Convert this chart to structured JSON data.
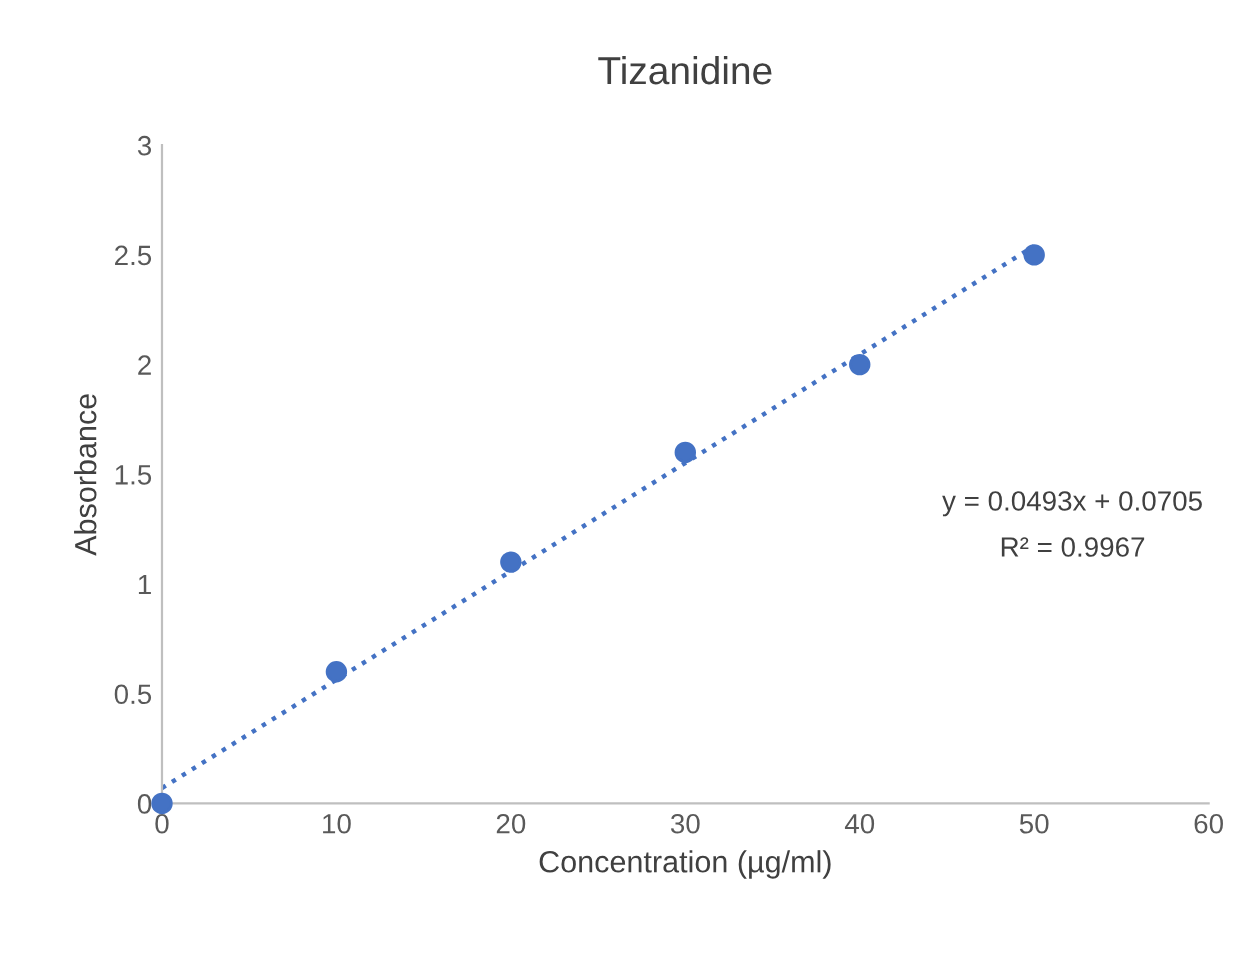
{
  "chart_data": {
    "type": "scatter",
    "title": "Tizanidine",
    "xlabel": "Concentration (µg/ml)",
    "ylabel": "Absorbance",
    "marker": "circle",
    "series": [
      {
        "color": "#4472c4",
        "x": [
          0,
          10,
          20,
          30,
          40,
          50
        ],
        "values": [
          0,
          0.6,
          1.1,
          1.6,
          2.0,
          2.5
        ]
      },
      {
        "type": "line",
        "color": "#4472c4",
        "x": [
          0,
          50
        ],
        "values": [
          0.07,
          2.54
        ],
        "line_style": "dotted",
        "marker": "none"
      }
    ],
    "annotations": [
      "y = 0.0493x + 0.0705",
      "R² = 0.9967"
    ],
    "xlim": [
      0,
      60
    ],
    "xticks": [
      0,
      10,
      20,
      30,
      40,
      50,
      60
    ],
    "ylim": [
      0,
      3
    ],
    "yticks": [
      0,
      0.5,
      1,
      1.5,
      2,
      2.5,
      3
    ],
    "grid": false
  }
}
